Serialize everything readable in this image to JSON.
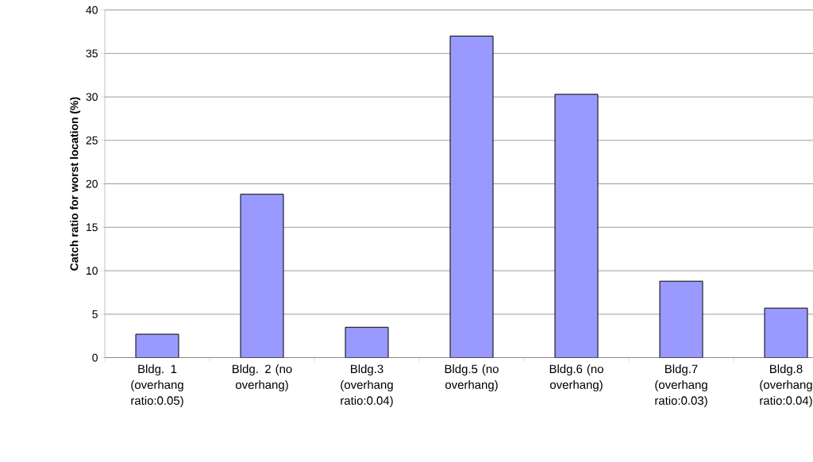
{
  "chart_data": {
    "type": "bar",
    "ylabel": "Catch ratio for worst location (%)",
    "categories": [
      "Bldg. 1 (overhang ratio:0.05)",
      "Bldg. 2 (no overhang)",
      "Bldg.3 (overhang ratio:0.04)",
      "Bldg.5 (no overhang)",
      "Bldg.6 (no overhang)",
      "Bldg.7 (overhang ratio:0.03)",
      "Bldg.8 (overhang ratio:0.04)"
    ],
    "values": [
      2.7,
      18.8,
      3.5,
      37.0,
      30.3,
      8.8,
      5.7
    ],
    "color": "#9999ff",
    "ylim": [
      0,
      40
    ],
    "yticks": [
      0,
      5,
      10,
      15,
      20,
      25,
      30,
      35,
      40
    ],
    "grid": "y"
  }
}
